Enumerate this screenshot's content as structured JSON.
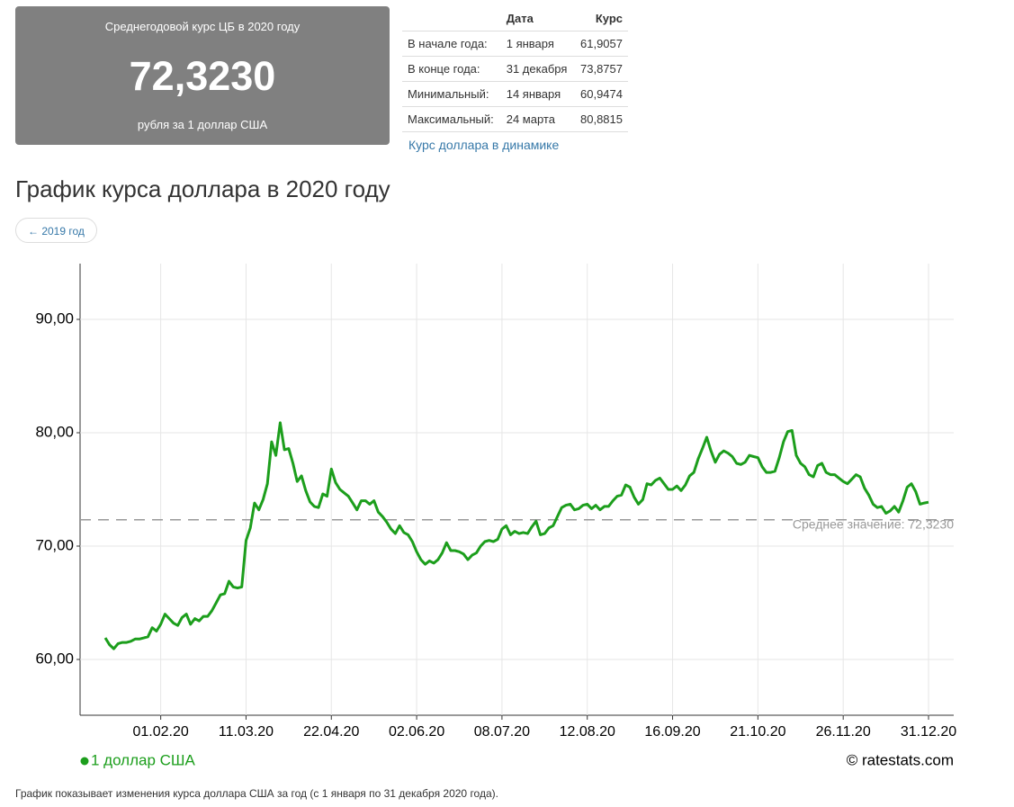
{
  "summary": {
    "title": "Среднегодовой курс ЦБ в 2020 году",
    "value": "72,3230",
    "unit": "рубля за 1 доллар США"
  },
  "table": {
    "headers": [
      "Дата",
      "Курс"
    ],
    "rows": [
      [
        "В начале года:",
        "1 января",
        "61,9057"
      ],
      [
        "В конце года:",
        "31 декабря",
        "73,8757"
      ],
      [
        "Минимальный:",
        "14 января",
        "60,9474"
      ],
      [
        "Максимальный:",
        "24 марта",
        "80,8815"
      ]
    ],
    "link": "Курс доллара в динамике"
  },
  "heading": "График курса доллара в 2020 году",
  "prev_button": "← 2019 год",
  "caption": "График показывает изменения курса доллара США за год (с 1 января по 31 декабря 2020 года).",
  "chart_data": {
    "type": "line",
    "categories": [
      null,
      null,
      null,
      null,
      null,
      null,
      null,
      null,
      null,
      null,
      null,
      null,
      null,
      "01.02.20",
      null,
      null,
      null,
      null,
      null,
      null,
      null,
      null,
      null,
      null,
      null,
      null,
      null,
      null,
      null,
      null,
      null,
      null,
      null,
      "11.03.20",
      null,
      null,
      null,
      null,
      null,
      null,
      null,
      null,
      null,
      null,
      null,
      null,
      null,
      null,
      null,
      null,
      null,
      null,
      null,
      "22.04.20",
      null,
      null,
      null,
      null,
      null,
      null,
      null,
      null,
      null,
      null,
      null,
      null,
      null,
      null,
      null,
      null,
      null,
      null,
      null,
      "02.06.20",
      null,
      null,
      null,
      null,
      null,
      null,
      null,
      null,
      null,
      null,
      null,
      null,
      null,
      null,
      null,
      null,
      null,
      null,
      null,
      "08.07.20",
      null,
      null,
      null,
      null,
      null,
      null,
      null,
      null,
      null,
      null,
      null,
      null,
      null,
      null,
      null,
      null,
      null,
      null,
      null,
      "12.08.20",
      null,
      null,
      null,
      null,
      null,
      null,
      null,
      null,
      null,
      null,
      null,
      null,
      null,
      null,
      null,
      null,
      null,
      null,
      null,
      "16.09.20",
      null,
      null,
      null,
      null,
      null,
      null,
      null,
      null,
      null,
      null,
      null,
      null,
      null,
      null,
      null,
      null,
      null,
      null,
      null,
      "21.10.20",
      null,
      null,
      null,
      null,
      null,
      null,
      null,
      null,
      null,
      null,
      null,
      null,
      null,
      null,
      null,
      null,
      null,
      null,
      null,
      "26.11.20",
      null,
      null,
      null,
      null,
      null,
      null,
      null,
      null,
      null,
      null,
      null,
      null,
      null,
      null,
      null,
      null,
      null,
      null,
      null,
      "31.12.20"
    ],
    "series": [
      {
        "name": "1 доллар США",
        "color": "#1c9e1c",
        "values": [
          61.9057,
          61.3,
          60.9474,
          61.4,
          61.5,
          61.5,
          61.6,
          61.8,
          61.8,
          61.9,
          62.0,
          62.8,
          62.5,
          63.1,
          64.0,
          63.6,
          63.2,
          63.0,
          63.7,
          64.0,
          63.1,
          63.6,
          63.4,
          63.8,
          63.8,
          64.3,
          65.0,
          65.7,
          65.8,
          66.9,
          66.4,
          66.3,
          66.4,
          70.5,
          71.6,
          73.8,
          73.2,
          74.1,
          75.5,
          79.2,
          78.0,
          80.8815,
          78.5,
          78.6,
          77.3,
          75.7,
          76.2,
          74.9,
          73.9,
          73.5,
          73.4,
          74.6,
          74.4,
          76.8,
          75.6,
          75.0,
          74.7,
          74.4,
          73.8,
          73.2,
          74.0,
          74.0,
          73.7,
          74.0,
          73.0,
          72.6,
          72.1,
          71.5,
          71.1,
          71.8,
          71.2,
          71.0,
          70.4,
          69.5,
          68.8,
          68.4,
          68.7,
          68.5,
          68.8,
          69.4,
          70.3,
          69.6,
          69.6,
          69.5,
          69.3,
          68.8,
          69.2,
          69.4,
          70.0,
          70.4,
          70.5,
          70.4,
          70.6,
          71.5,
          71.8,
          71.0,
          71.3,
          71.1,
          71.2,
          71.1,
          71.7,
          72.2,
          71.0,
          71.1,
          71.6,
          71.8,
          72.6,
          73.4,
          73.6,
          73.7,
          73.2,
          73.3,
          73.6,
          73.7,
          73.3,
          73.6,
          73.2,
          73.5,
          73.5,
          74.0,
          74.4,
          74.5,
          75.4,
          75.2,
          74.3,
          73.7,
          74.1,
          75.5,
          75.4,
          75.8,
          76.0,
          75.5,
          75.0,
          75.0,
          75.3,
          74.9,
          75.4,
          76.2,
          76.5,
          77.7,
          78.6,
          79.6,
          78.4,
          77.4,
          78.1,
          78.4,
          78.2,
          77.9,
          77.3,
          77.2,
          77.4,
          78.0,
          77.9,
          77.8,
          77.0,
          76.5,
          76.5,
          76.6,
          77.8,
          79.2,
          80.1,
          80.2,
          78.0,
          77.3,
          77.0,
          76.3,
          76.1,
          77.1,
          77.3,
          76.5,
          76.3,
          76.3,
          76.0,
          75.7,
          75.5,
          75.9,
          76.3,
          76.1,
          75.1,
          74.5,
          73.7,
          73.4,
          73.5,
          72.9,
          73.1,
          73.5,
          73.0,
          74.0,
          75.2,
          75.5,
          74.8,
          73.7,
          73.8,
          73.8757
        ]
      }
    ],
    "ylim": [
      55.08,
      94.92
    ],
    "yticks": [
      {
        "value": 60,
        "label": "60,00"
      },
      {
        "value": 70,
        "label": "70,00"
      },
      {
        "value": 80,
        "label": "80,00"
      },
      {
        "value": 90,
        "label": "90,00"
      }
    ],
    "grid": true,
    "average": {
      "value": 72.323,
      "label": "Среднее значение: 72,3230"
    },
    "watermark": "© ratestats.com"
  }
}
